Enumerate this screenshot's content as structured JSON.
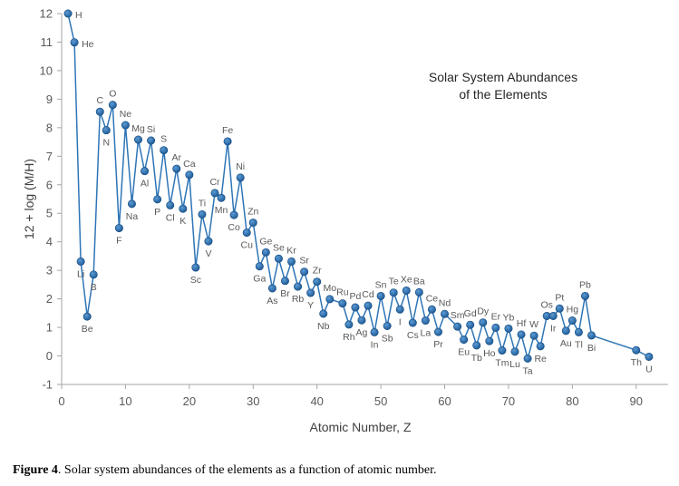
{
  "chart_data": {
    "type": "line",
    "title_lines": [
      "Solar System Abundances",
      "of the Elements"
    ],
    "xlabel": "Atomic Number, Z",
    "ylabel": "12 + log (M/H)",
    "xlim": [
      0,
      95
    ],
    "ylim": [
      -1,
      12
    ],
    "x_ticks": [
      0,
      10,
      20,
      30,
      40,
      50,
      60,
      70,
      80,
      90
    ],
    "y_ticks": [
      -1,
      0,
      1,
      2,
      3,
      4,
      5,
      6,
      7,
      8,
      9,
      10,
      11,
      12
    ],
    "grid": false,
    "marker": "circle",
    "line_color": "#2E75B6",
    "marker_color": "#1F5C99",
    "points": [
      {
        "x": 1,
        "y": 12.0,
        "label": "H"
      },
      {
        "x": 2,
        "y": 10.99,
        "label": "He"
      },
      {
        "x": 3,
        "y": 3.31,
        "label": "Li"
      },
      {
        "x": 4,
        "y": 1.38,
        "label": "Be"
      },
      {
        "x": 5,
        "y": 2.85,
        "label": "B"
      },
      {
        "x": 6,
        "y": 8.56,
        "label": "C"
      },
      {
        "x": 7,
        "y": 7.91,
        "label": "N"
      },
      {
        "x": 8,
        "y": 8.8,
        "label": "O"
      },
      {
        "x": 9,
        "y": 4.48,
        "label": "F"
      },
      {
        "x": 10,
        "y": 8.09,
        "label": "Ne"
      },
      {
        "x": 11,
        "y": 5.33,
        "label": "Na"
      },
      {
        "x": 12,
        "y": 7.58,
        "label": "Mg"
      },
      {
        "x": 13,
        "y": 6.48,
        "label": "Al"
      },
      {
        "x": 14,
        "y": 7.55,
        "label": "Si"
      },
      {
        "x": 15,
        "y": 5.49,
        "label": "P"
      },
      {
        "x": 16,
        "y": 7.21,
        "label": "S"
      },
      {
        "x": 17,
        "y": 5.28,
        "label": "Cl"
      },
      {
        "x": 18,
        "y": 6.56,
        "label": "Ar"
      },
      {
        "x": 19,
        "y": 5.16,
        "label": "K"
      },
      {
        "x": 20,
        "y": 6.35,
        "label": "Ca"
      },
      {
        "x": 21,
        "y": 3.1,
        "label": "Sc"
      },
      {
        "x": 22,
        "y": 4.96,
        "label": "Ti"
      },
      {
        "x": 23,
        "y": 4.02,
        "label": "V"
      },
      {
        "x": 24,
        "y": 5.71,
        "label": "Cr"
      },
      {
        "x": 25,
        "y": 5.54,
        "label": "Mn"
      },
      {
        "x": 26,
        "y": 7.52,
        "label": "Fe"
      },
      {
        "x": 27,
        "y": 4.94,
        "label": "Co"
      },
      {
        "x": 28,
        "y": 6.25,
        "label": "Ni"
      },
      {
        "x": 29,
        "y": 4.32,
        "label": "Cu"
      },
      {
        "x": 30,
        "y": 4.67,
        "label": "Zn"
      },
      {
        "x": 31,
        "y": 3.14,
        "label": "Ga"
      },
      {
        "x": 32,
        "y": 3.63,
        "label": "Ge"
      },
      {
        "x": 33,
        "y": 2.37,
        "label": "As"
      },
      {
        "x": 34,
        "y": 3.41,
        "label": "Se"
      },
      {
        "x": 35,
        "y": 2.63,
        "label": "Br"
      },
      {
        "x": 36,
        "y": 3.31,
        "label": "Kr"
      },
      {
        "x": 37,
        "y": 2.43,
        "label": "Rb"
      },
      {
        "x": 38,
        "y": 2.95,
        "label": "Sr"
      },
      {
        "x": 39,
        "y": 2.21,
        "label": "Y"
      },
      {
        "x": 40,
        "y": 2.6,
        "label": "Zr"
      },
      {
        "x": 41,
        "y": 1.48,
        "label": "Nb"
      },
      {
        "x": 42,
        "y": 1.99,
        "label": "Mo"
      },
      {
        "x": 44,
        "y": 1.84,
        "label": "Ru"
      },
      {
        "x": 45,
        "y": 1.1,
        "label": "Rh"
      },
      {
        "x": 46,
        "y": 1.7,
        "label": "Pd"
      },
      {
        "x": 47,
        "y": 1.25,
        "label": "Ag"
      },
      {
        "x": 48,
        "y": 1.76,
        "label": "Cd"
      },
      {
        "x": 49,
        "y": 0.83,
        "label": "In"
      },
      {
        "x": 50,
        "y": 2.1,
        "label": "Sn"
      },
      {
        "x": 51,
        "y": 1.05,
        "label": "Sb"
      },
      {
        "x": 52,
        "y": 2.22,
        "label": "Te"
      },
      {
        "x": 53,
        "y": 1.63,
        "label": "I"
      },
      {
        "x": 54,
        "y": 2.29,
        "label": "Xe"
      },
      {
        "x": 55,
        "y": 1.16,
        "label": "Cs"
      },
      {
        "x": 56,
        "y": 2.23,
        "label": "Ba"
      },
      {
        "x": 57,
        "y": 1.24,
        "label": "La"
      },
      {
        "x": 58,
        "y": 1.63,
        "label": "Ce"
      },
      {
        "x": 59,
        "y": 0.84,
        "label": "Pr"
      },
      {
        "x": 60,
        "y": 1.47,
        "label": "Nd"
      },
      {
        "x": 62,
        "y": 1.03,
        "label": "Sm"
      },
      {
        "x": 63,
        "y": 0.57,
        "label": "Eu"
      },
      {
        "x": 64,
        "y": 1.09,
        "label": "Gd"
      },
      {
        "x": 65,
        "y": 0.37,
        "label": "Tb"
      },
      {
        "x": 66,
        "y": 1.17,
        "label": "Dy"
      },
      {
        "x": 67,
        "y": 0.52,
        "label": "Ho"
      },
      {
        "x": 68,
        "y": 0.99,
        "label": "Er"
      },
      {
        "x": 69,
        "y": 0.19,
        "label": "Tm"
      },
      {
        "x": 70,
        "y": 0.96,
        "label": "Yb"
      },
      {
        "x": 71,
        "y": 0.15,
        "label": "Lu"
      },
      {
        "x": 72,
        "y": 0.75,
        "label": "Hf"
      },
      {
        "x": 73,
        "y": -0.09,
        "label": "Ta"
      },
      {
        "x": 74,
        "y": 0.71,
        "label": "W"
      },
      {
        "x": 75,
        "y": 0.34,
        "label": "Re"
      },
      {
        "x": 76,
        "y": 1.4,
        "label": "Os"
      },
      {
        "x": 77,
        "y": 1.4,
        "label": "Ir"
      },
      {
        "x": 78,
        "y": 1.66,
        "label": "Pt"
      },
      {
        "x": 79,
        "y": 0.88,
        "label": "Au"
      },
      {
        "x": 80,
        "y": 1.24,
        "label": "Hg"
      },
      {
        "x": 81,
        "y": 0.83,
        "label": "Tl"
      },
      {
        "x": 82,
        "y": 2.1,
        "label": "Pb"
      },
      {
        "x": 83,
        "y": 0.72,
        "label": "Bi"
      },
      {
        "x": 90,
        "y": 0.2,
        "label": "Th"
      },
      {
        "x": 92,
        "y": -0.03,
        "label": "U"
      }
    ]
  },
  "caption": {
    "label": "Figure 4",
    "text": ". Solar system abundances of the elements as a function of atomic number."
  }
}
